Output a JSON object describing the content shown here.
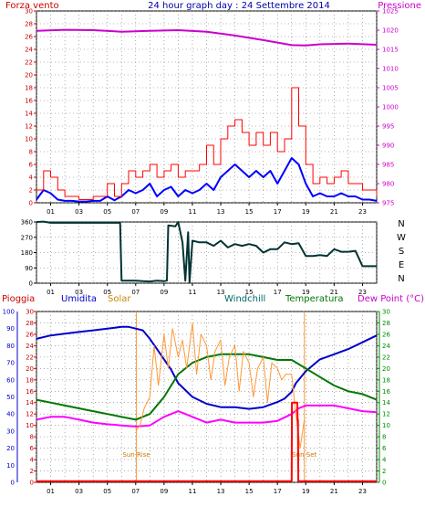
{
  "chart_data": [
    {
      "type": "line",
      "title": "24 hour graph day : 24 Settembre 2014",
      "left_label": "Forza vento",
      "right_label": "Pressione",
      "ylim_left": [
        0,
        30
      ],
      "ylim_right": [
        975,
        1025
      ],
      "y_ticks_left": [
        "0",
        "2",
        "4",
        "6",
        "8",
        "10",
        "12",
        "14",
        "16",
        "18",
        "20",
        "22",
        "24",
        "26",
        "28",
        "30"
      ],
      "y_ticks_right": [
        "975",
        "980",
        "985",
        "990",
        "995",
        "1000",
        "1005",
        "1010",
        "1015",
        "1020",
        "1025"
      ],
      "x_ticks": [
        "01",
        "03",
        "05",
        "07",
        "09",
        "11",
        "13",
        "15",
        "17",
        "19",
        "21",
        "23"
      ],
      "colors": {
        "gust": "#ff0000",
        "wind": "#0000ff",
        "pressure": "#cc00cc",
        "axis_left": "#cc0000",
        "axis_right": "#cc00cc",
        "title": "#0000aa"
      },
      "series": [
        {
          "key": "pressure",
          "axis": "right",
          "x": [
            0,
            2,
            4,
            6,
            8,
            10,
            12,
            14,
            16,
            18,
            19,
            20,
            22,
            24
          ],
          "values": [
            1019.8,
            1020.1,
            1020.0,
            1019.6,
            1019.8,
            1020.0,
            1019.6,
            1018.6,
            1017.4,
            1016.1,
            1016.0,
            1016.3,
            1016.5,
            1016.2
          ]
        },
        {
          "key": "wind",
          "axis": "left",
          "x": [
            0,
            0.5,
            1,
            1.5,
            2,
            2.5,
            3,
            3.5,
            4,
            4.5,
            5,
            5.5,
            6,
            6.5,
            7,
            7.5,
            8,
            8.5,
            9,
            9.5,
            10,
            10.5,
            11,
            11.5,
            12,
            12.5,
            13,
            13.5,
            14,
            14.5,
            15,
            15.5,
            16,
            16.5,
            17,
            17.5,
            18,
            18.5,
            19,
            19.5,
            20,
            20.5,
            21,
            21.5,
            22,
            22.5,
            23,
            23.5,
            24
          ],
          "values": [
            0.5,
            2,
            1.5,
            0.5,
            0.3,
            0.3,
            0.2,
            0.2,
            0.3,
            0.3,
            1,
            0.4,
            1,
            2,
            1.5,
            2,
            3,
            1,
            2,
            2.5,
            1,
            2,
            1.5,
            2,
            3,
            2,
            4,
            5,
            6,
            5,
            4,
            5,
            4,
            5,
            3,
            5,
            7,
            6,
            3,
            1,
            1.5,
            1,
            1,
            1.5,
            1,
            1,
            0.5,
            0.5,
            0.3
          ]
        },
        {
          "key": "gust",
          "axis": "left",
          "x": [
            0,
            0.5,
            1,
            1.5,
            2,
            2.5,
            3,
            3.5,
            4,
            4.5,
            5,
            5.5,
            6,
            6.5,
            7,
            7.5,
            8,
            8.5,
            9,
            9.5,
            10,
            10.5,
            11,
            11.5,
            12,
            12.5,
            13,
            13.5,
            14,
            14.5,
            15,
            15.5,
            16,
            16.5,
            17,
            17.5,
            18,
            18.5,
            19,
            19.5,
            20,
            20.5,
            21,
            21.5,
            22,
            22.5,
            23,
            23.5,
            24
          ],
          "values": [
            2,
            5,
            4,
            2,
            1,
            1,
            0.5,
            0.5,
            1,
            1,
            3,
            1,
            3,
            5,
            4,
            5,
            6,
            4,
            5,
            6,
            4,
            5,
            5,
            6,
            9,
            6,
            10,
            12,
            13,
            11,
            9,
            11,
            9,
            11,
            8,
            10,
            18,
            12,
            6,
            3,
            4,
            3,
            4,
            5,
            3,
            3,
            2,
            2,
            1
          ]
        }
      ]
    },
    {
      "type": "line",
      "y_ticks": [
        "0",
        "90",
        "180",
        "270",
        "360"
      ],
      "ylim": [
        0,
        360
      ],
      "right_labels": [
        "N",
        "W",
        "S",
        "E",
        "N"
      ],
      "x_ticks": [
        "01",
        "03",
        "05",
        "07",
        "09",
        "11",
        "13",
        "15",
        "17",
        "19",
        "21",
        "23"
      ],
      "colors": {
        "line": "#003333"
      },
      "series": [
        {
          "key": "wind-direction",
          "x": [
            0,
            0.5,
            1,
            2,
            3,
            4,
            5,
            5.9,
            6.0,
            6.5,
            7,
            7.5,
            8,
            8.5,
            9,
            9.2,
            9.3,
            9.8,
            10,
            10.3,
            10.5,
            10.7,
            10.8,
            11,
            11.5,
            12,
            12.5,
            13,
            13.5,
            14,
            14.5,
            15,
            15.5,
            16,
            16.5,
            17,
            17.5,
            18,
            18.5,
            19,
            19.5,
            20,
            20.5,
            21,
            21.5,
            22,
            22.5,
            23,
            24
          ],
          "values": [
            360,
            362,
            355,
            355,
            355,
            355,
            355,
            355,
            15,
            15,
            15,
            12,
            10,
            15,
            12,
            15,
            340,
            335,
            360,
            240,
            15,
            300,
            5,
            250,
            240,
            240,
            220,
            250,
            210,
            230,
            220,
            230,
            220,
            180,
            200,
            200,
            240,
            230,
            235,
            160,
            160,
            165,
            160,
            200,
            185,
            185,
            190,
            100,
            100
          ]
        }
      ]
    },
    {
      "type": "line",
      "headers": [
        "Pioggia",
        "Umidita",
        "Solar",
        "Windchill",
        "Temperatura",
        "Dew Point (°C)"
      ],
      "y_ticks_left": [
        "0",
        "10",
        "20",
        "30",
        "40",
        "50",
        "60",
        "70",
        "80",
        "90",
        "100"
      ],
      "y_ticks_mid": [
        "0",
        "2",
        "4",
        "6",
        "8",
        "10",
        "12",
        "14",
        "16",
        "18",
        "20",
        "22",
        "24",
        "26",
        "28",
        "30"
      ],
      "y_ticks_right": [
        "0",
        "2",
        "4",
        "6",
        "8",
        "10",
        "12",
        "14",
        "16",
        "18",
        "20",
        "22",
        "24",
        "26",
        "28",
        "30"
      ],
      "x_ticks": [
        "01",
        "03",
        "05",
        "07",
        "09",
        "11",
        "13",
        "15",
        "17",
        "19",
        "21",
        "23"
      ],
      "annotations": [
        {
          "text": "Sun Rise",
          "x": 7.05
        },
        {
          "text": "Sun Set",
          "x": 18.9
        }
      ],
      "colors": {
        "humidity": "#0000cc",
        "solar": "#ff9933",
        "temperature": "#007700",
        "dewpoint": "#ff00ff",
        "rain": "#ff0000",
        "left_axis": "#0000cc",
        "mid_axis": "#cc0000",
        "right_axis": "#008800",
        "windchill": "#006600"
      },
      "series": [
        {
          "key": "humidity",
          "axis": "left",
          "ylim": [
            0,
            100
          ],
          "x": [
            0,
            1,
            2,
            3,
            4,
            5,
            6,
            6.5,
            7,
            7.5,
            8,
            8.5,
            9,
            9.5,
            10,
            11,
            12,
            13,
            14,
            15,
            16,
            17,
            17.5,
            18,
            18.3,
            19,
            20,
            21,
            22,
            23,
            24
          ],
          "values": [
            84,
            86,
            87,
            88,
            89,
            90,
            91,
            91,
            90,
            89,
            84,
            78,
            72,
            66,
            58,
            50,
            46,
            44,
            44,
            43,
            44,
            47,
            49,
            53,
            58,
            65,
            72,
            75,
            78,
            82,
            86
          ]
        },
        {
          "key": "temperature",
          "axis": "right",
          "ylim": [
            0,
            30
          ],
          "x": [
            0,
            1,
            2,
            3,
            4,
            5,
            6,
            7,
            8,
            9,
            10,
            11,
            12,
            13,
            14,
            15,
            16,
            17,
            18,
            19,
            20,
            21,
            22,
            23,
            24
          ],
          "values": [
            14.5,
            14,
            13.5,
            13,
            12.5,
            12,
            11.5,
            11,
            12,
            15,
            19,
            21,
            22,
            22.5,
            22.5,
            22.5,
            22,
            21.5,
            21.5,
            20,
            18.5,
            17,
            16,
            15.5,
            14.5
          ]
        },
        {
          "key": "dewpoint",
          "axis": "right",
          "ylim": [
            0,
            30
          ],
          "x": [
            0,
            1,
            2,
            3,
            4,
            5,
            6,
            7,
            8,
            9,
            10,
            11,
            12,
            13,
            14,
            15,
            16,
            17,
            18,
            18.5,
            19,
            20,
            21,
            22,
            23,
            24
          ],
          "values": [
            11,
            11.5,
            11.5,
            11,
            10.5,
            10.2,
            10,
            9.8,
            10,
            11.5,
            12.5,
            11.5,
            10.5,
            11,
            10.5,
            10.5,
            10.5,
            10.8,
            12,
            13,
            13.5,
            13.5,
            13.5,
            13,
            12.5,
            12.3
          ]
        },
        {
          "key": "solar",
          "axis": "right",
          "ylim": [
            0,
            30
          ],
          "x": [
            7,
            7.3,
            7.6,
            8,
            8.3,
            8.6,
            9,
            9.3,
            9.6,
            10,
            10.3,
            10.6,
            11,
            11.3,
            11.6,
            12,
            12.3,
            12.6,
            13,
            13.3,
            13.6,
            14,
            14.3,
            14.6,
            15,
            15.3,
            15.6,
            16,
            16.3,
            16.6,
            17,
            17.3,
            17.6,
            18,
            18.3,
            18.6,
            18.9
          ],
          "values": [
            9,
            10,
            13,
            15,
            24,
            17,
            26,
            20,
            27,
            22,
            25,
            20,
            28,
            19,
            26,
            24,
            18,
            23,
            25,
            17,
            22,
            24,
            16,
            23,
            21,
            15,
            20,
            22,
            14,
            21,
            20,
            18,
            19,
            19,
            12,
            6,
            11
          ]
        },
        {
          "key": "rain",
          "axis": "right",
          "ylim": [
            0,
            30
          ],
          "x": [
            0,
            18,
            18.02,
            18.4,
            18.42,
            18.45,
            18.47,
            24
          ],
          "values": [
            0.2,
            0.2,
            14,
            14,
            11,
            11,
            0.2,
            0.2
          ]
        }
      ]
    }
  ]
}
